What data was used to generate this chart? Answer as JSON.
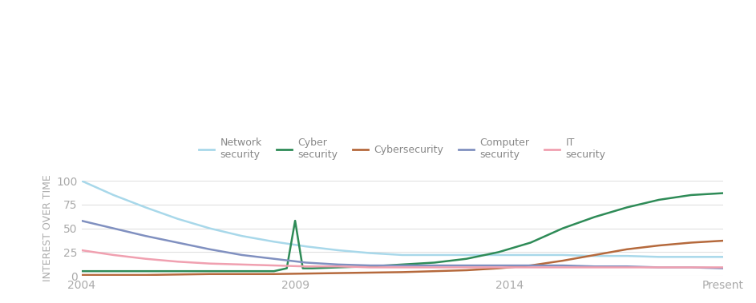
{
  "title": "",
  "ylabel": "INTEREST OVER TIME",
  "xlim": [
    0,
    1
  ],
  "ylim": [
    0,
    100
  ],
  "xtick_labels": [
    "2004",
    "2009",
    "2014",
    "Present"
  ],
  "xtick_positions": [
    0.0,
    0.333,
    0.667,
    1.0
  ],
  "ytick_labels": [
    "0",
    "25",
    "50",
    "75",
    "100"
  ],
  "ytick_positions": [
    0,
    25,
    50,
    75,
    100
  ],
  "background_color": "#ffffff",
  "grid_color": "#e0e0e0",
  "series": {
    "Network security": {
      "color": "#a8d8ea",
      "linewidth": 1.8,
      "x": [
        0.0,
        0.05,
        0.1,
        0.15,
        0.2,
        0.25,
        0.3,
        0.35,
        0.4,
        0.45,
        0.5,
        0.55,
        0.6,
        0.65,
        0.7,
        0.75,
        0.8,
        0.85,
        0.9,
        0.95,
        1.0
      ],
      "y": [
        100,
        85,
        72,
        60,
        50,
        42,
        36,
        31,
        27,
        24,
        22,
        22,
        22,
        22,
        22,
        22,
        21,
        21,
        20,
        20,
        20
      ]
    },
    "Cyber security": {
      "color": "#2e8b57",
      "linewidth": 1.8,
      "x": [
        0.0,
        0.05,
        0.1,
        0.15,
        0.2,
        0.25,
        0.3,
        0.32,
        0.333,
        0.345,
        0.36,
        0.4,
        0.45,
        0.5,
        0.55,
        0.6,
        0.65,
        0.7,
        0.75,
        0.8,
        0.85,
        0.9,
        0.95,
        1.0
      ],
      "y": [
        5,
        5,
        5,
        5,
        5,
        5,
        5,
        8,
        58,
        8,
        8,
        9,
        10,
        12,
        14,
        18,
        25,
        35,
        50,
        62,
        72,
        80,
        85,
        87
      ]
    },
    "Cybersecurity": {
      "color": "#b5693c",
      "linewidth": 1.8,
      "x": [
        0.0,
        0.1,
        0.2,
        0.3,
        0.4,
        0.5,
        0.6,
        0.65,
        0.7,
        0.75,
        0.8,
        0.85,
        0.9,
        0.95,
        1.0
      ],
      "y": [
        1,
        1,
        2,
        2,
        3,
        4,
        6,
        8,
        11,
        16,
        22,
        28,
        32,
        35,
        37
      ]
    },
    "Computer security": {
      "color": "#8090c0",
      "linewidth": 1.8,
      "x": [
        0.0,
        0.05,
        0.1,
        0.15,
        0.2,
        0.25,
        0.3,
        0.35,
        0.4,
        0.45,
        0.5,
        0.55,
        0.6,
        0.65,
        0.7,
        0.75,
        0.8,
        0.85,
        0.9,
        0.95,
        1.0
      ],
      "y": [
        58,
        50,
        42,
        35,
        28,
        22,
        18,
        14,
        12,
        11,
        11,
        11,
        11,
        11,
        11,
        11,
        10,
        10,
        9,
        9,
        8
      ]
    },
    "IT security": {
      "color": "#f0a0b0",
      "linewidth": 1.8,
      "x": [
        0.0,
        0.05,
        0.1,
        0.15,
        0.2,
        0.25,
        0.3,
        0.35,
        0.4,
        0.45,
        0.5,
        0.55,
        0.6,
        0.65,
        0.7,
        0.75,
        0.8,
        0.85,
        0.9,
        0.95,
        1.0
      ],
      "y": [
        27,
        22,
        18,
        15,
        13,
        12,
        11,
        10,
        10,
        9,
        9,
        9,
        9,
        9,
        9,
        9,
        9,
        9,
        9,
        9,
        9
      ]
    }
  },
  "legend": {
    "Network security": {
      "color": "#a8d8ea"
    },
    "Cyber\nsecurity": {
      "color": "#2e8b57"
    },
    "Cybersecurity": {
      "color": "#b5693c"
    },
    "Computer\nsecurity": {
      "color": "#8090c0"
    },
    "IT\nsecurity": {
      "color": "#f0a0b0"
    }
  }
}
